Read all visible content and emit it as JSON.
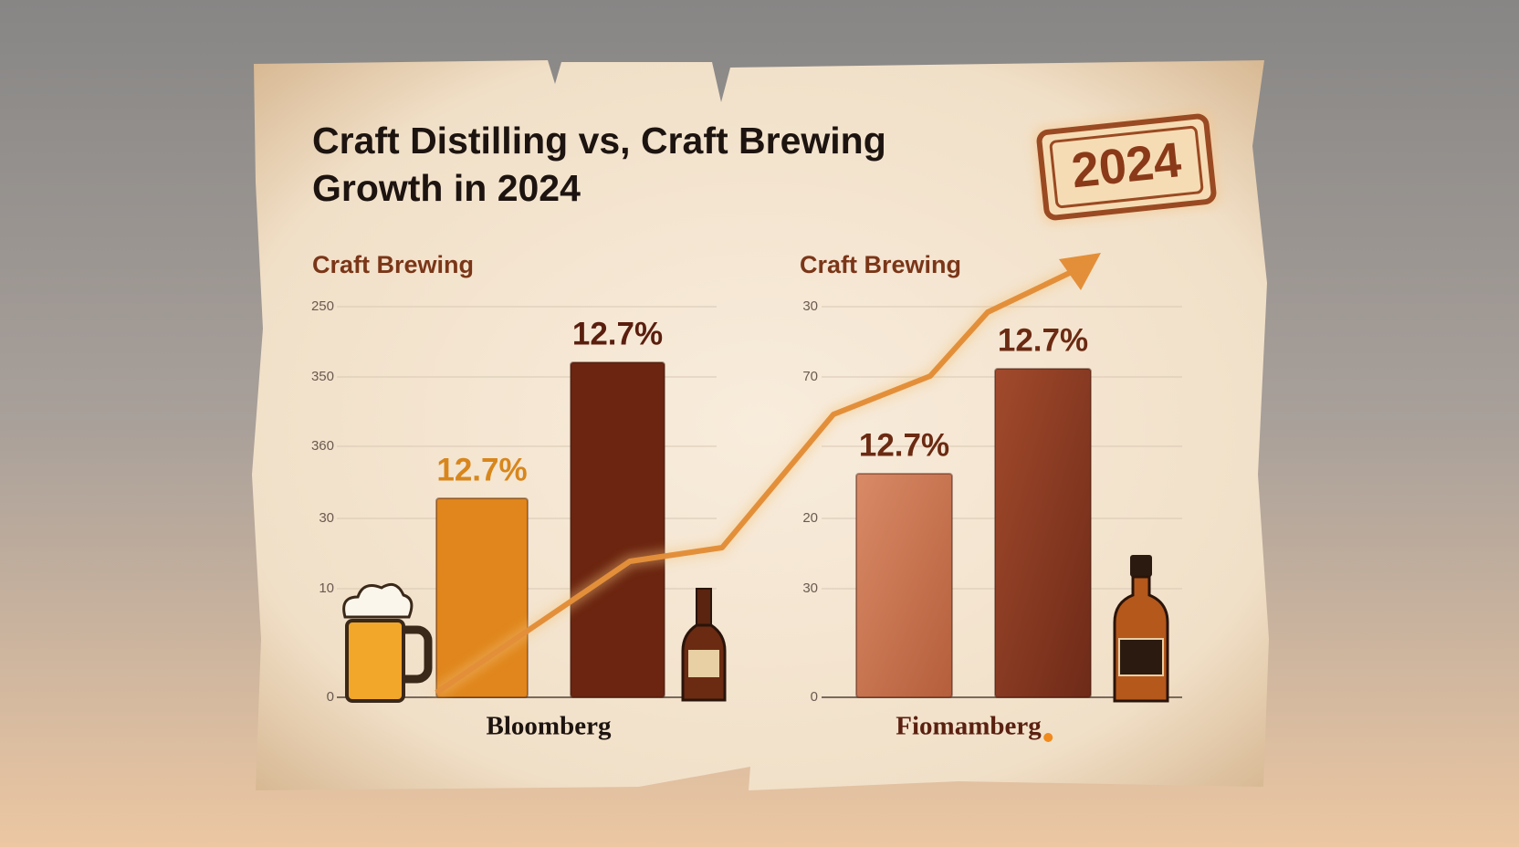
{
  "title": [
    "Craft Distilling vs, Craft Brewing",
    "Growth in 2024"
  ],
  "stamp": "2024",
  "panels": [
    {
      "heading": "Craft Brewing",
      "ticks": [
        "250",
        "350",
        "360",
        "30",
        "10",
        "0"
      ],
      "bar_labels": [
        "12.7%",
        "12.7%"
      ],
      "source": "Bloomberg"
    },
    {
      "heading": "Craft Brewing",
      "ticks": [
        "30",
        "70",
        "20",
        "30",
        "0"
      ],
      "bar_labels": [
        "12.7%",
        "12.7%"
      ],
      "source": "Fiomamberg"
    }
  ]
}
